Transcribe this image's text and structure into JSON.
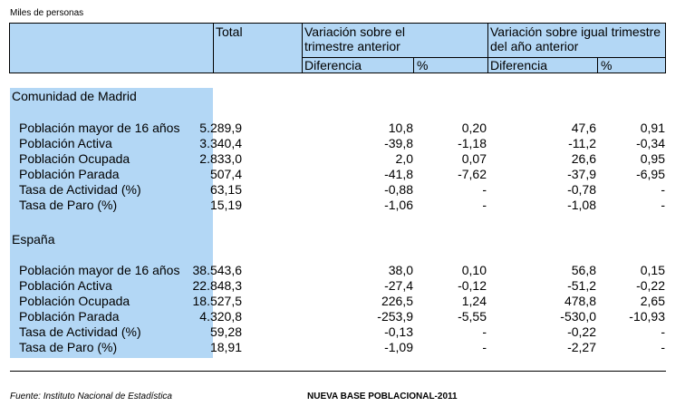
{
  "unit": "Miles de personas",
  "header": {
    "total": "Total",
    "var_trim_line1": "Variación sobre el",
    "var_trim_line2": "trimestre anterior",
    "var_anual_line1": "Variación sobre igual trimestre",
    "var_anual_line2": "del año anterior",
    "diff_label": "Diferencia",
    "pct_label": "%"
  },
  "sections": [
    {
      "title": "Comunidad de Madrid",
      "rows": [
        {
          "label": "Población mayor de 16 años",
          "total": "5.289,9",
          "d1": "10,8",
          "p1": "0,20",
          "d2": "47,6",
          "p2": "0,91"
        },
        {
          "label": "Población Activa",
          "total": "3.340,4",
          "d1": "-39,8",
          "p1": "-1,18",
          "d2": "-11,2",
          "p2": "-0,34"
        },
        {
          "label": "Población Ocupada",
          "total": "2.833,0",
          "d1": "2,0",
          "p1": "0,07",
          "d2": "26,6",
          "p2": "0,95"
        },
        {
          "label": "Población Parada",
          "total": "507,4",
          "d1": "-41,8",
          "p1": "-7,62",
          "d2": "-37,9",
          "p2": "-6,95"
        },
        {
          "label": "Tasa de Actividad (%)",
          "total": "63,15",
          "d1": "-0,88",
          "p1": "-",
          "d2": "-0,78",
          "p2": "-"
        },
        {
          "label": "Tasa de Paro (%)",
          "total": "15,19",
          "d1": "-1,06",
          "p1": "-",
          "d2": "-1,08",
          "p2": "-"
        }
      ]
    },
    {
      "title": "España",
      "rows": [
        {
          "label": "Población mayor de 16 años",
          "total": "38.543,6",
          "d1": "38,0",
          "p1": "0,10",
          "d2": "56,8",
          "p2": "0,15"
        },
        {
          "label": "Población Activa",
          "total": "22.848,3",
          "d1": "-27,4",
          "p1": "-0,12",
          "d2": "-51,2",
          "p2": "-0,22"
        },
        {
          "label": "Población Ocupada",
          "total": "18.527,5",
          "d1": "226,5",
          "p1": "1,24",
          "d2": "478,8",
          "p2": "2,65"
        },
        {
          "label": "Población Parada",
          "total": "4.320,8",
          "d1": "-253,9",
          "p1": "-5,55",
          "d2": "-530,0",
          "p2": "-10,93"
        },
        {
          "label": "Tasa de Actividad (%)",
          "total": "59,28",
          "d1": "-0,13",
          "p1": "-",
          "d2": "-0,22",
          "p2": "-"
        },
        {
          "label": "Tasa de Paro (%)",
          "total": "18,91",
          "d1": "-1,09",
          "p1": "-",
          "d2": "-2,27",
          "p2": "-"
        }
      ]
    }
  ],
  "footer": {
    "source": "Fuente: Instituto Nacional de Estadística",
    "note": "NUEVA BASE POBLACIONAL-2011"
  }
}
